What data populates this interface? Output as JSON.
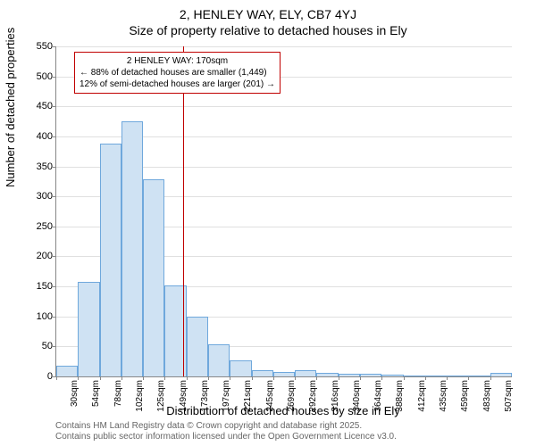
{
  "titles": {
    "main": "2, HENLEY WAY, ELY, CB7 4YJ",
    "sub": "Size of property relative to detached houses in Ely"
  },
  "axes": {
    "ylabel": "Number of detached properties",
    "xlabel": "Distribution of detached houses by size in Ely",
    "ylim": [
      0,
      550
    ],
    "ytick_step": 50,
    "yticks": [
      0,
      50,
      100,
      150,
      200,
      250,
      300,
      350,
      400,
      450,
      500,
      550
    ]
  },
  "histogram": {
    "type": "bar",
    "bar_fill": "#cfe2f3",
    "bar_stroke": "#6fa8dc",
    "bar_stroke_width": 1,
    "bin_label_suffix": "sqm",
    "bins_start": 30,
    "bin_width_sqm": 24,
    "x_labels": [
      "30sqm",
      "54sqm",
      "78sqm",
      "102sqm",
      "125sqm",
      "149sqm",
      "173sqm",
      "197sqm",
      "221sqm",
      "245sqm",
      "269sqm",
      "292sqm",
      "316sqm",
      "340sqm",
      "364sqm",
      "388sqm",
      "412sqm",
      "435sqm",
      "459sqm",
      "483sqm",
      "507sqm"
    ],
    "values": [
      18,
      158,
      388,
      425,
      328,
      152,
      100,
      54,
      27,
      10,
      7,
      10,
      6,
      5,
      4,
      3,
      2,
      2,
      2,
      2,
      6
    ]
  },
  "marker": {
    "x_sqm": 170,
    "line_color": "#c00000",
    "line_width": 1
  },
  "annotation": {
    "border_color": "#c00000",
    "lines": {
      "l1": "2 HENLEY WAY: 170sqm",
      "l2": "← 88% of detached houses are smaller (1,449)",
      "l3": "12% of semi-detached houses are larger (201) →"
    }
  },
  "footer": {
    "l1": "Contains HM Land Registry data © Crown copyright and database right 2025.",
    "l2": "Contains public sector information licensed under the Open Government Licence v3.0."
  },
  "colors": {
    "background": "#ffffff",
    "grid": "#e0e0e0",
    "axis": "#888888",
    "text": "#000000",
    "footer_text": "#666666"
  },
  "fonts": {
    "title_size_pt": 11,
    "label_size_pt": 10,
    "tick_size_pt": 8,
    "annotation_size_pt": 8,
    "footer_size_pt": 8
  }
}
